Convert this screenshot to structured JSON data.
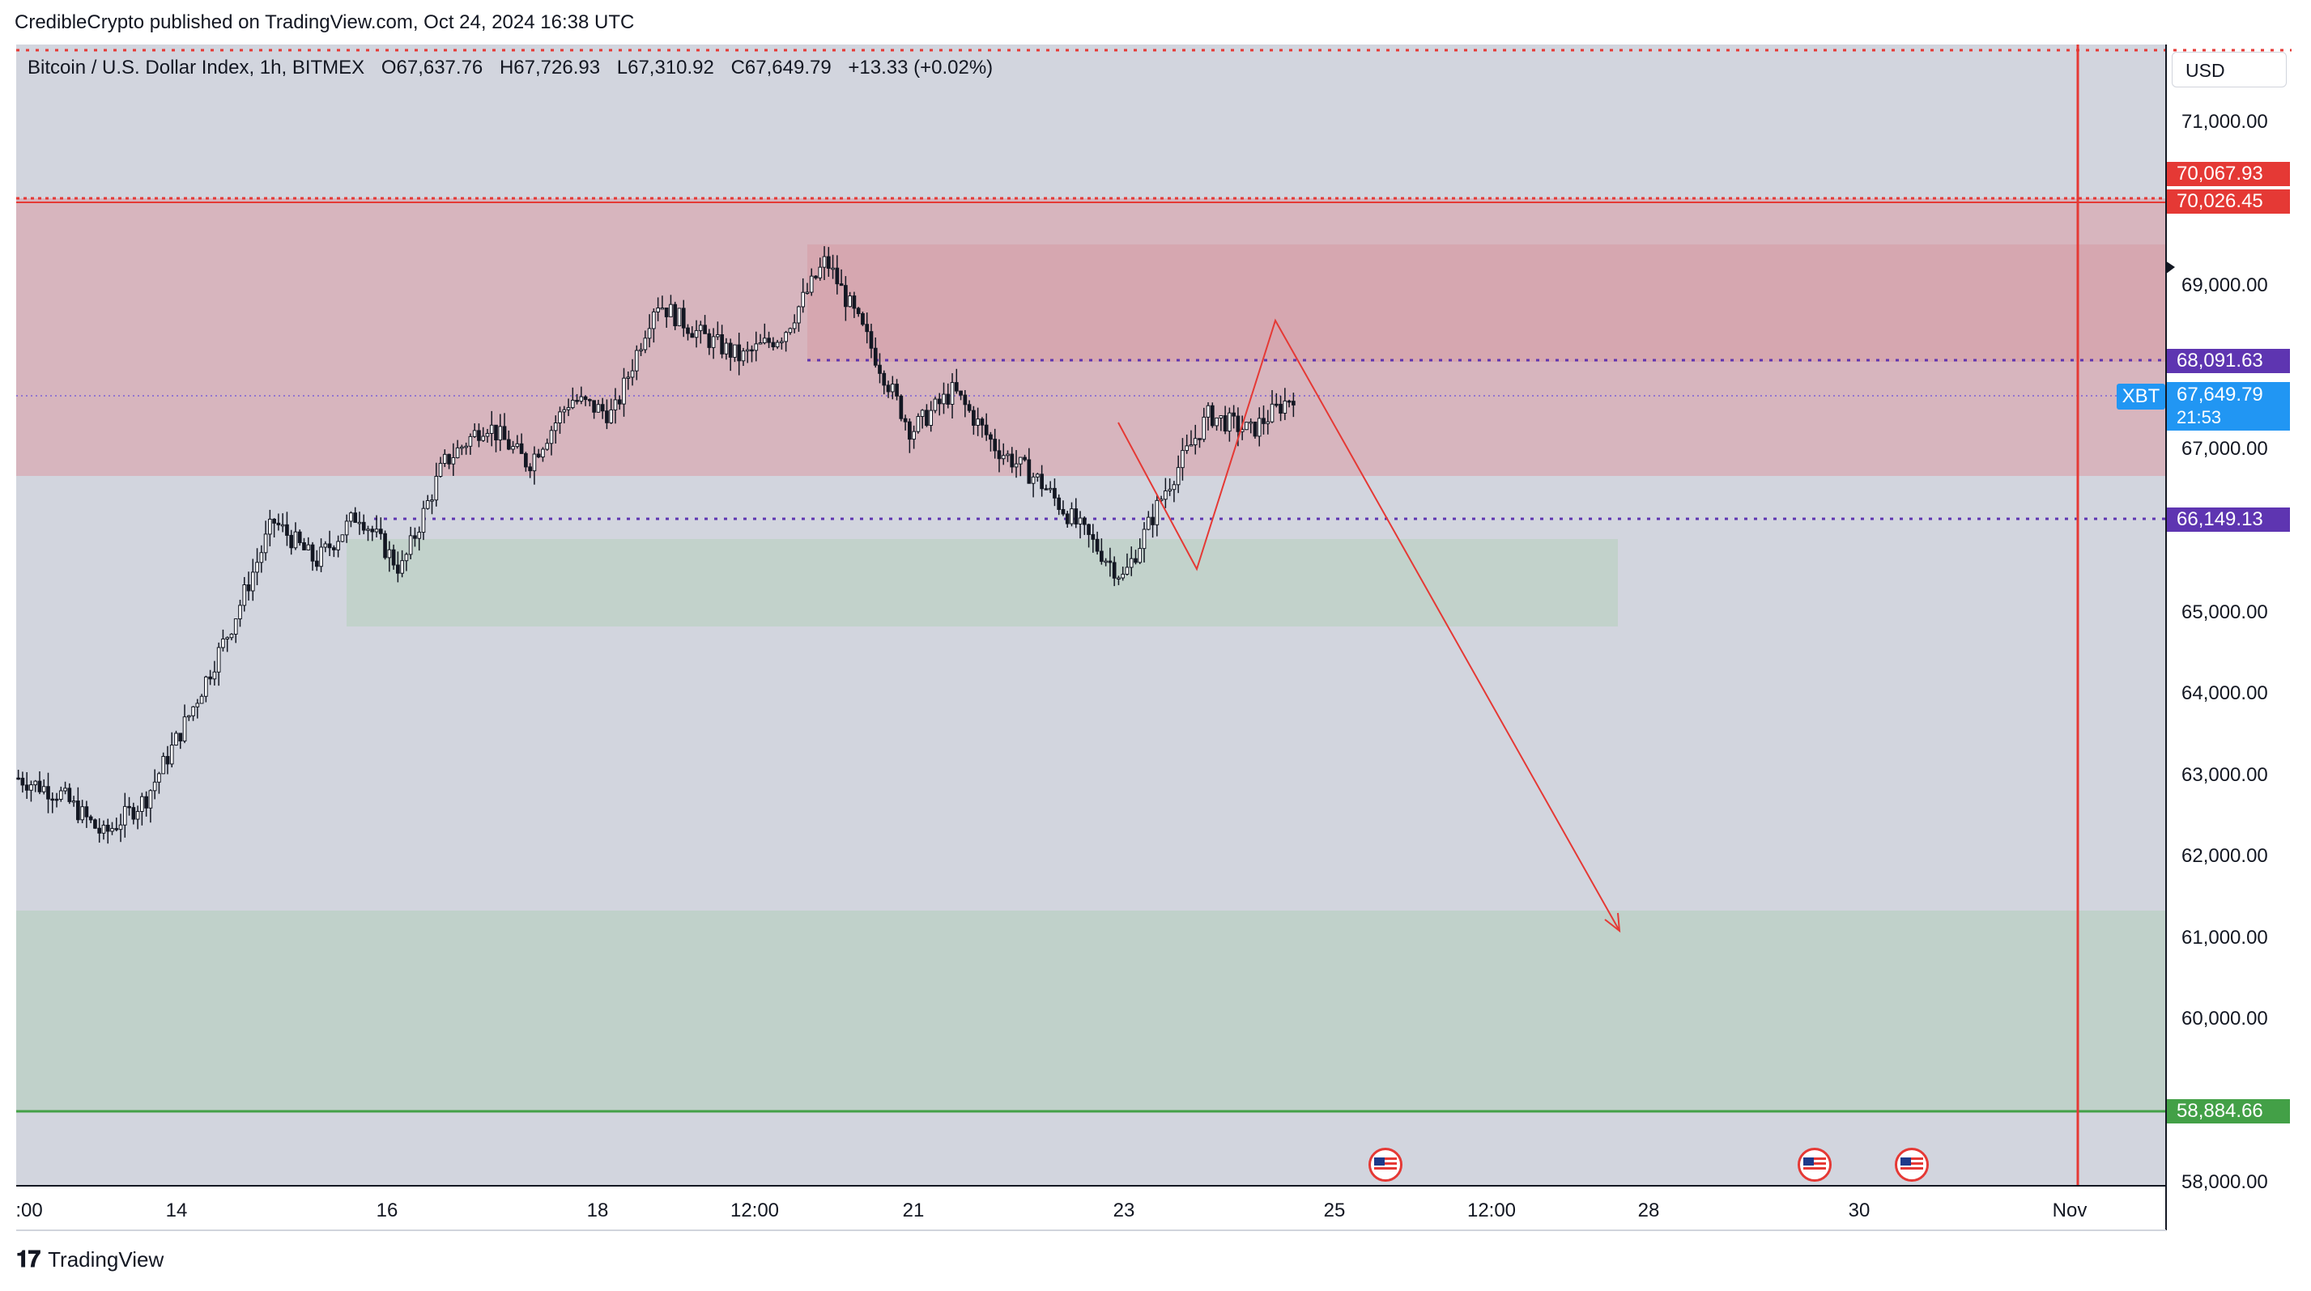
{
  "header": {
    "published_line": "CredibleCrypto published on TradingView.com, Oct 24, 2024 16:38 UTC"
  },
  "legend": {
    "symbol": "Bitcoin / U.S. Dollar Index, 1h, BITMEX",
    "open_key": "O",
    "open": "67,637.76",
    "high_key": "H",
    "high": "67,726.93",
    "low_key": "L",
    "low": "67,310.92",
    "close_key": "C",
    "close": "67,649.79",
    "change": "+13.33 (+0.02%)"
  },
  "currency_button": {
    "label": "USD"
  },
  "price_tags": {
    "level_top_1": "70,067.93",
    "level_top_2": "70,026.45",
    "level_resistance": "68,091.63",
    "last_symbol": "XBT",
    "last_price": "67,649.79",
    "countdown": "21:53",
    "level_support": "66,149.13",
    "level_bottom": "58,884.66"
  },
  "colors": {
    "red_zone": "#d8aab3",
    "green_zone": "#bfd1c8",
    "chart_bg": "#d2d5de",
    "red_line": "#e53935",
    "purple_line": "#5e35b1",
    "green_line": "#43a047",
    "blue_tag": "#2196f3"
  },
  "icons": {
    "event_flag": "us-flag-icon",
    "brand": "tradingview-logo-icon"
  },
  "brand": {
    "name": "TradingView"
  },
  "chart_data": {
    "type": "candlestick",
    "title": "Bitcoin / U.S. Dollar Index, 1h, BITMEX",
    "x_tick_labels": [
      ":00",
      "14",
      "16",
      "18",
      "12:00",
      "21",
      "23",
      "25",
      "12:00",
      "28",
      "30",
      "Nov"
    ],
    "y_tick_labels": [
      "71,000.00",
      "69,000.00",
      "67,000.00",
      "65,000.00",
      "64,000.00",
      "63,000.00",
      "62,000.00",
      "61,000.00",
      "60,000.00",
      "58,000.00"
    ],
    "ylim": [
      57900,
      71800
    ],
    "grid": false,
    "price_path": [
      [
        0,
        62950
      ],
      [
        1,
        62750
      ],
      [
        2,
        62250
      ],
      [
        3,
        62700
      ],
      [
        4,
        63700
      ],
      [
        5,
        64800
      ],
      [
        6,
        66100
      ],
      [
        7,
        65600
      ],
      [
        8,
        66200
      ],
      [
        9,
        65500
      ],
      [
        10,
        66800
      ],
      [
        11,
        67300
      ],
      [
        12,
        66800
      ],
      [
        13,
        67600
      ],
      [
        14,
        67400
      ],
      [
        15,
        68800
      ],
      [
        16,
        68400
      ],
      [
        17,
        68100
      ],
      [
        18,
        68400
      ],
      [
        19,
        69300
      ],
      [
        20,
        68300
      ],
      [
        21,
        67200
      ],
      [
        22,
        67700
      ],
      [
        23,
        67000
      ],
      [
        24,
        66600
      ],
      [
        25,
        66000
      ],
      [
        26,
        65400
      ],
      [
        27,
        66500
      ],
      [
        28,
        67400
      ],
      [
        29,
        67200
      ],
      [
        30,
        67650
      ]
    ],
    "levels": [
      70067.93,
      70026.45,
      68091.63,
      66149.13,
      58884.66
    ],
    "zones": [
      {
        "kind": "supply",
        "from": 66700,
        "to": 70067
      },
      {
        "kind": "supply-inner",
        "from": 68090,
        "to": 69400
      },
      {
        "kind": "demand",
        "from": 64800,
        "to": 65900
      },
      {
        "kind": "demand-target",
        "from": 58884,
        "to": 61300
      }
    ],
    "projection": [
      [
        67650,
        68550
      ],
      [
        68550,
        61000
      ]
    ]
  }
}
